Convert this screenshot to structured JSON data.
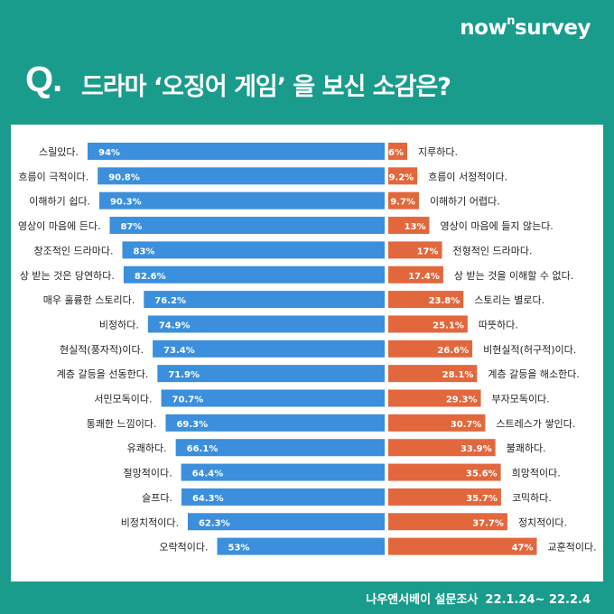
{
  "brand": {
    "name_prefix": "now",
    "name_sup": "n",
    "name_suffix": "survey"
  },
  "title": {
    "q": "Q.",
    "text": "드라마 ‘오징어 게임’ 을 보신 소감은?"
  },
  "footer": {
    "source": "나우앤서베이 설문조사",
    "period": "22.1.24~ 22.2.4"
  },
  "colors": {
    "background": "#1a9c8c",
    "left_bar": "#3b8fdc",
    "right_bar": "#e3673d",
    "panel": "#ffffff"
  },
  "chart_data": {
    "type": "bar",
    "orientation": "horizontal-diverging",
    "unit": "%",
    "xlim": [
      0,
      100
    ],
    "categories_left": [
      "스릴있다.",
      "흐름이 극적이다.",
      "이해하기 쉽다.",
      "영상이 마음에 든다.",
      "창조적인 드라마다.",
      "상 받는 것은 당연하다.",
      "매우 훌륭한 스토리다.",
      "비정하다.",
      "현실적(풍자적)이다.",
      "계층 갈등을 선동한다.",
      "서민모독이다.",
      "통쾌한 느낌이다.",
      "유쾌하다.",
      "절망적이다.",
      "슬프다.",
      "비정치적이다.",
      "오락적이다."
    ],
    "categories_right": [
      "지루하다.",
      "흐름이 서정적이다.",
      "이해하기 어렵다.",
      "영상이 마음에 들지 않는다.",
      "전형적인 드라마다.",
      "상 받는 것을 이해할 수 없다.",
      "스토리는 별로다.",
      "따뜻하다.",
      "비현실적(허구적)이다.",
      "계층 갈등을 해소한다.",
      "부자모독이다.",
      "스트레스가 쌓인다.",
      "불쾌하다.",
      "희망적이다.",
      "코믹하다.",
      "정치적이다.",
      "교훈적이다."
    ],
    "series": [
      {
        "values": [
          94,
          90.8,
          90.3,
          87,
          83,
          82.6,
          76.2,
          74.9,
          73.4,
          71.9,
          70.7,
          69.3,
          66.1,
          64.4,
          64.3,
          62.3,
          53
        ],
        "labels": [
          "94%",
          "90.8%",
          "90.3%",
          "87%",
          "83%",
          "82.6%",
          "76.2%",
          "74.9%",
          "73.4%",
          "71.9%",
          "70.7%",
          "69.3%",
          "66.1%",
          "64.4%",
          "64.3%",
          "62.3%",
          "53%"
        ]
      },
      {
        "values": [
          6,
          9.2,
          9.7,
          13,
          17,
          17.4,
          23.8,
          25.1,
          26.6,
          28.1,
          29.3,
          30.7,
          33.9,
          35.6,
          35.7,
          37.7,
          47
        ],
        "labels": [
          "6%",
          "9.2%",
          "9.7%",
          "13%",
          "17%",
          "17.4%",
          "23.8%",
          "25.1%",
          "26.6%",
          "28.1%",
          "29.3%",
          "30.7%",
          "33.9%",
          "35.6%",
          "35.7%",
          "37.7%",
          "47%"
        ]
      }
    ]
  }
}
